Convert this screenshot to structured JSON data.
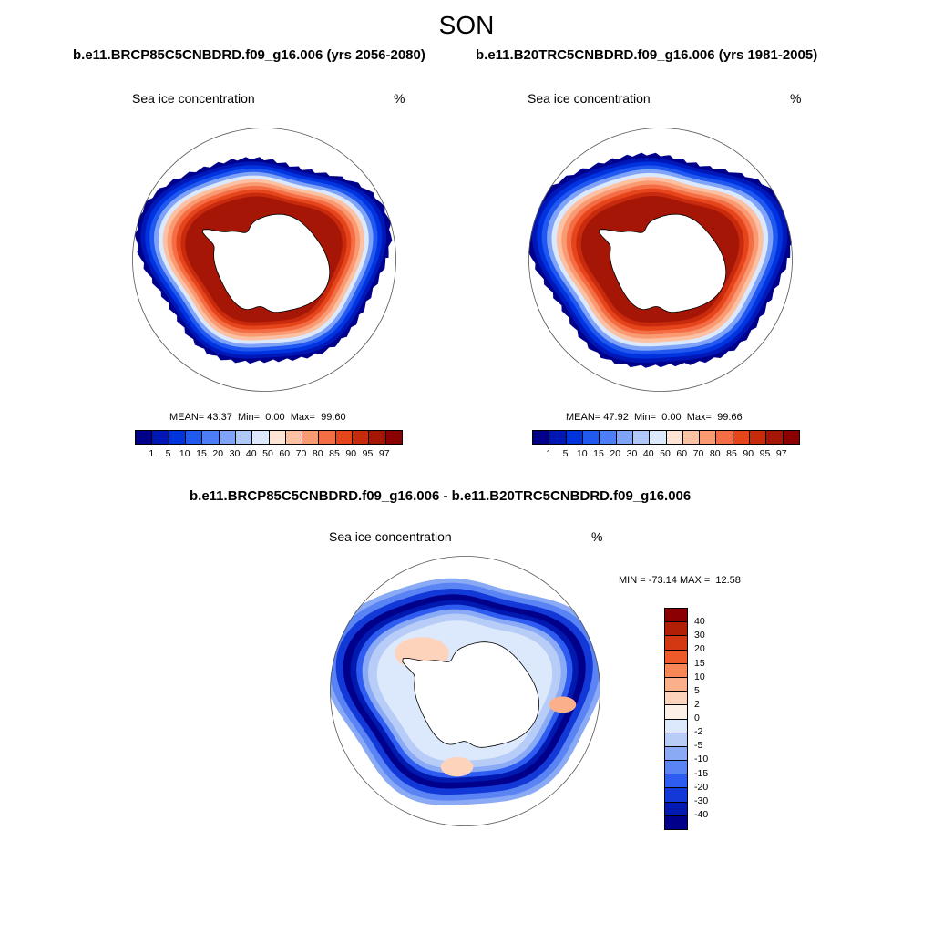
{
  "figure": {
    "season": "SON",
    "case_titles": [
      "b.e11.BRCP85C5CNBDRD.f09_g16.006 (yrs 2056-2080)",
      "b.e11.B20TRC5CNBDRD.f09_g16.006 (yrs 1981-2005)"
    ],
    "diff_title": "b.e11.BRCP85C5CNBDRD.f09_g16.006 - b.e11.B20TRC5CNBDRD.f09_g16.006"
  },
  "panels": [
    {
      "label": "Sea ice concentration",
      "units": "%",
      "stats": {
        "mean_label": "MEAN=",
        "mean": "43.37",
        "min_label": "Min=",
        "min": "0.00",
        "max_label": "Max=",
        "max": "99.60"
      },
      "ice_ring_outer_latitude_deg": -56
    },
    {
      "label": "Sea ice concentration",
      "units": "%",
      "stats": {
        "mean_label": "MEAN=",
        "mean": "47.92",
        "min_label": "Min=",
        "min": "0.00",
        "max_label": "Max=",
        "max": "99.66"
      },
      "ice_ring_outer_latitude_deg": -54
    }
  ],
  "difference_panel": {
    "label": "Sea ice concentration",
    "units": "%",
    "range_text": "MIN = -73.14 MAX =  12.58"
  },
  "colorbar_concentration": {
    "levels": [
      "1",
      "5",
      "10",
      "15",
      "20",
      "30",
      "40",
      "50",
      "60",
      "70",
      "80",
      "85",
      "90",
      "95",
      "97"
    ],
    "colors": [
      "#00008b",
      "#0017b8",
      "#0033e0",
      "#2058f0",
      "#4d7ef8",
      "#7fa3f7",
      "#b0c8f7",
      "#dce8fb",
      "#fde4d4",
      "#fcc0a2",
      "#fa9a72",
      "#f56d44",
      "#e6451c",
      "#c72a0c",
      "#a61607",
      "#8b0000"
    ]
  },
  "colorbar_difference": {
    "levels": [
      "40",
      "30",
      "20",
      "15",
      "10",
      "5",
      "2",
      "0",
      "-2",
      "-5",
      "-10",
      "-15",
      "-20",
      "-30",
      "-40"
    ],
    "colors": [
      "#8b0000",
      "#b01f06",
      "#d33812",
      "#ef5a2a",
      "#f98656",
      "#fbb08c",
      "#fdd3bc",
      "#fdf0e6",
      "#dce8fb",
      "#b7cdf7",
      "#8aaaf5",
      "#5a84f4",
      "#2f5cf0",
      "#1238d8",
      "#0019b0",
      "#00008b"
    ]
  }
}
